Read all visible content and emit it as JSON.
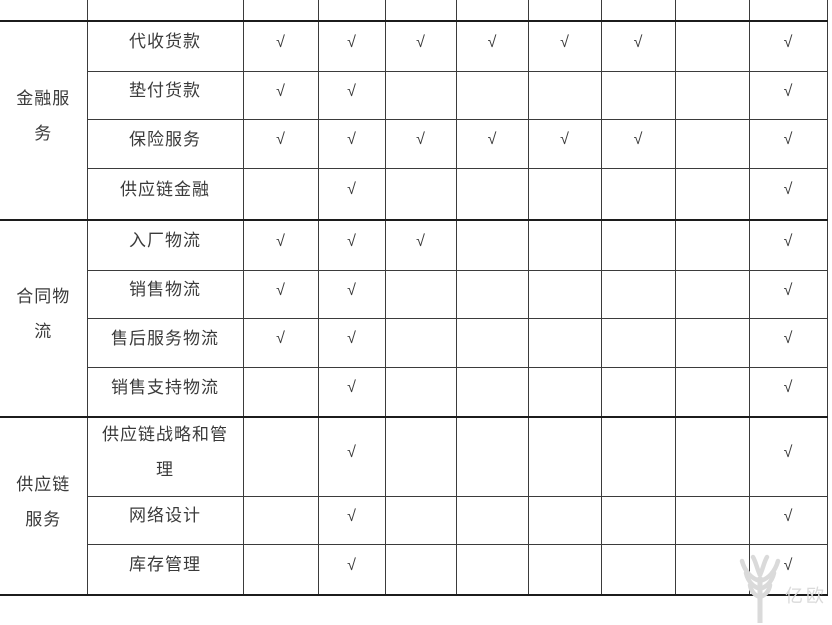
{
  "table": {
    "checkmark": "√",
    "check_columns": 8,
    "sections": [
      {
        "category": "金融服务",
        "rows": [
          {
            "service": "代收货款",
            "checks": [
              1,
              1,
              1,
              1,
              1,
              1,
              0,
              1
            ]
          },
          {
            "service": "垫付货款",
            "checks": [
              1,
              1,
              0,
              0,
              0,
              0,
              0,
              1
            ]
          },
          {
            "service": "保险服务",
            "checks": [
              1,
              1,
              1,
              1,
              1,
              1,
              0,
              1
            ]
          },
          {
            "service": "供应链金融",
            "checks": [
              0,
              1,
              0,
              0,
              0,
              0,
              0,
              1
            ]
          }
        ]
      },
      {
        "category": "合同物流",
        "rows": [
          {
            "service": "入厂物流",
            "checks": [
              1,
              1,
              1,
              0,
              0,
              0,
              0,
              1
            ]
          },
          {
            "service": "销售物流",
            "checks": [
              1,
              1,
              0,
              0,
              0,
              0,
              0,
              1
            ]
          },
          {
            "service": "售后服务物流",
            "checks": [
              1,
              1,
              0,
              0,
              0,
              0,
              0,
              1
            ]
          },
          {
            "service": "销售支持物流",
            "checks": [
              0,
              1,
              0,
              0,
              0,
              0,
              0,
              1
            ]
          }
        ]
      },
      {
        "category": "供应链服务",
        "rows": [
          {
            "service": "供应链战略和管理",
            "checks": [
              0,
              1,
              0,
              0,
              0,
              0,
              0,
              1
            ]
          },
          {
            "service": "网络设计",
            "checks": [
              0,
              1,
              0,
              0,
              0,
              0,
              0,
              1
            ]
          },
          {
            "service": "库存管理",
            "checks": [
              0,
              1,
              0,
              0,
              0,
              0,
              0,
              1
            ]
          }
        ]
      }
    ]
  },
  "watermark": {
    "logo": "yiou-logo-icon",
    "text": "亿欧"
  },
  "colors": {
    "border": "#3b3b3b",
    "border_bold": "#1c1c1c",
    "text": "#3a3a3a",
    "watermark": "#dadada",
    "background": "#ffffff"
  }
}
